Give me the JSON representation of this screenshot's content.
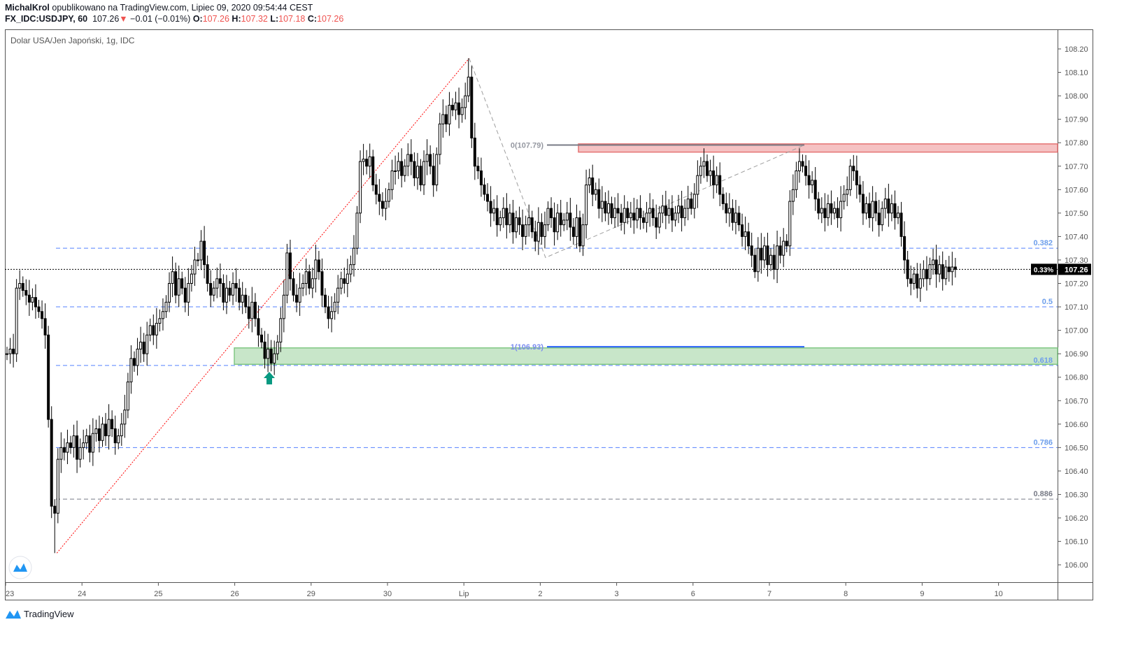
{
  "header": {
    "author": "MichalKrol",
    "published": "opublikowano na TradingView.com, Lipiec 09, 2020 09:54:44 CEST",
    "symbol": "FX_IDC:USDJPY, 60",
    "last": "107.26",
    "change": "−0.01 (−0.01%)",
    "o_label": "O:",
    "o": "107.26",
    "h_label": "H:",
    "h": "107.32",
    "l_label": "L:",
    "l": "107.18",
    "c_label": "C:",
    "c": "107.26",
    "down_icon": "triangle-down"
  },
  "chart_title": "Dolar USA/Jen Japoński, 1g, IDC",
  "footer": {
    "brand": "TradingView"
  },
  "chart_data": {
    "type": "candlestick",
    "interval": "60",
    "yrange": [
      106.0,
      108.2
    ],
    "y_ticks": [
      "106.00",
      "106.10",
      "106.20",
      "106.30",
      "106.40",
      "106.50",
      "106.60",
      "106.70",
      "106.80",
      "106.90",
      "107.00",
      "107.10",
      "107.20",
      "107.30",
      "107.40",
      "107.50",
      "107.60",
      "107.70",
      "107.80",
      "107.90",
      "108.00",
      "108.10",
      "108.20"
    ],
    "x_ticks": [
      "23",
      "24",
      "25",
      "26",
      "29",
      "30",
      "Lip",
      "2",
      "3",
      "6",
      "7",
      "8",
      "9",
      "10"
    ],
    "first_open": 106.9,
    "closes": [
      106.9,
      106.92,
      106.9,
      107.18,
      107.2,
      107.17,
      107.15,
      107.12,
      107.14,
      107.1,
      107.08,
      107.05,
      106.98,
      106.62,
      106.25,
      106.22,
      106.45,
      106.5,
      106.48,
      106.52,
      106.5,
      106.55,
      106.45,
      106.5,
      106.52,
      106.55,
      106.48,
      106.56,
      106.58,
      106.53,
      106.6,
      106.55,
      106.62,
      106.58,
      106.52,
      106.55,
      106.6,
      106.66,
      106.78,
      106.88,
      106.85,
      106.92,
      106.95,
      106.9,
      106.98,
      107.02,
      106.98,
      107.03,
      107.05,
      107.08,
      107.12,
      107.2,
      107.25,
      107.15,
      107.22,
      107.18,
      107.12,
      107.2,
      107.24,
      107.3,
      107.3,
      107.38,
      107.28,
      107.2,
      107.15,
      107.18,
      107.22,
      107.2,
      107.12,
      107.18,
      107.15,
      107.2,
      107.18,
      107.12,
      107.15,
      107.1,
      107.05,
      107.12,
      107.05,
      106.98,
      106.95,
      106.88,
      106.92,
      106.86,
      106.9,
      106.95,
      107.05,
      107.15,
      107.33,
      107.22,
      107.15,
      107.12,
      107.18,
      107.2,
      107.25,
      107.18,
      107.22,
      107.3,
      107.25,
      107.15,
      107.1,
      107.05,
      107.08,
      107.12,
      107.18,
      107.22,
      107.2,
      107.24,
      107.28,
      107.35,
      107.5,
      107.72,
      107.73,
      107.7,
      107.74,
      107.62,
      107.58,
      107.55,
      107.52,
      107.55,
      107.6,
      107.68,
      107.68,
      107.72,
      107.66,
      107.7,
      107.75,
      107.72,
      107.65,
      107.7,
      107.62,
      107.72,
      107.75,
      107.7,
      107.62,
      107.75,
      107.88,
      107.92,
      107.88,
      107.96,
      107.94,
      107.97,
      107.92,
      107.95,
      108.0,
      108.08,
      107.82,
      107.7,
      107.68,
      107.62,
      107.58,
      107.55,
      107.5,
      107.52,
      107.45,
      107.48,
      107.52,
      107.45,
      107.5,
      107.42,
      107.48,
      107.45,
      107.4,
      107.45,
      107.48,
      107.42,
      107.38,
      107.46,
      107.4,
      107.45,
      107.52,
      107.48,
      107.42,
      107.5,
      107.45,
      107.47,
      107.5,
      107.44,
      107.4,
      107.48,
      107.36,
      107.45,
      107.62,
      107.65,
      107.58,
      107.6,
      107.52,
      107.55,
      107.5,
      107.54,
      107.48,
      107.52,
      107.5,
      107.46,
      107.52,
      107.48,
      107.5,
      107.47,
      107.52,
      107.48,
      107.46,
      107.5,
      107.52,
      107.48,
      107.44,
      107.5,
      107.53,
      107.49,
      107.52,
      107.47,
      107.5,
      107.53,
      107.48,
      107.52,
      107.56,
      107.52,
      107.58,
      107.66,
      107.7,
      107.72,
      107.66,
      107.68,
      107.62,
      107.66,
      107.58,
      107.54,
      107.5,
      107.52,
      107.46,
      107.5,
      107.45,
      107.4,
      107.42,
      107.36,
      107.32,
      107.25,
      107.35,
      107.3,
      107.36,
      107.28,
      107.32,
      107.26,
      107.36,
      107.32,
      107.38,
      107.36,
      107.55,
      107.6,
      107.68,
      107.72,
      107.7,
      107.66,
      107.62,
      107.64,
      107.56,
      107.5,
      107.52,
      107.48,
      107.54,
      107.5,
      107.52,
      107.48,
      107.55,
      107.58,
      107.6,
      107.7,
      107.68,
      107.62,
      107.58,
      107.5,
      107.54,
      107.48,
      107.55,
      107.5,
      107.45,
      107.52,
      107.56,
      107.5,
      107.54,
      107.48,
      107.5,
      107.4,
      107.3,
      107.22,
      107.2,
      107.24,
      107.18,
      107.22,
      107.26,
      107.22,
      107.28,
      107.3,
      107.24,
      107.28,
      107.22,
      107.27,
      107.25,
      107.27,
      107.26
    ],
    "swing_low": 106.05,
    "swing_high": 108.16,
    "last_price": {
      "value": "107.26",
      "change_pct": "0.33%",
      "color": "#000000"
    },
    "fib_levels": [
      {
        "label": "0.382",
        "price": 107.35,
        "color": "#2962ff"
      },
      {
        "label": "0.5",
        "price": 107.1,
        "color": "#2962ff"
      },
      {
        "label": "0.618",
        "price": 106.85,
        "color": "#2962ff"
      },
      {
        "label": "0.786",
        "price": 106.5,
        "color": "#2962ff"
      },
      {
        "label": "0.886",
        "price": 106.28,
        "color": "#787b86"
      }
    ],
    "fib_ext": [
      {
        "label": "0(107.79)",
        "price": 107.79,
        "color": "#787b86"
      },
      {
        "label": "1(106.93)",
        "price": 106.93,
        "color": "#2962ff"
      }
    ],
    "swing_mid_low": 107.31,
    "resistance_zone": {
      "top": 107.795,
      "bottom": 107.76,
      "fill": "#f5c2c3",
      "stroke": "#e57373"
    },
    "support_zone": {
      "top": 106.925,
      "bottom": 106.855,
      "fill": "#c8e6c9",
      "stroke": "#81c784"
    },
    "arrow": {
      "direction": "up",
      "color": "#089981"
    },
    "colors": {
      "up_fill": "#ffffff",
      "down_fill": "#000000",
      "trend_line": "#ff0000"
    }
  }
}
